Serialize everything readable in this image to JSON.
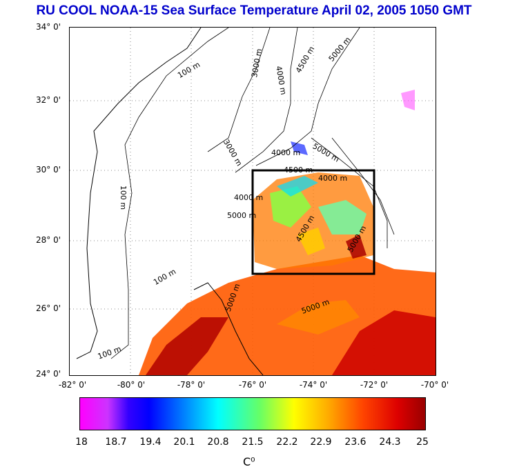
{
  "title": "RU COOL  NOAA-15 Sea Surface Temperature April 02, 2005 1050 GMT",
  "y_axis_labels": [
    "34° 0'",
    "32° 0'",
    "30° 0'",
    "28° 0'",
    "26° 0'",
    "24° 0'"
  ],
  "x_axis_labels": [
    "-82° 0'",
    "-80° 0'",
    "-78° 0'",
    "-76° 0'",
    "-74° 0'",
    "-72° 0'",
    "-70° 0'"
  ],
  "contour_labels": [
    "100 m",
    "100 m",
    "100 m",
    "100 m",
    "3000 m",
    "4000 m",
    "4500 m",
    "5000 m",
    "3000 m",
    "4000 m",
    "4500 m",
    "5000 m",
    "4000 m",
    "5000 m",
    "4000 m",
    "4500 m",
    "5000 m",
    "5000 m",
    "5000 m"
  ],
  "colorbar": {
    "tick_labels": [
      "18",
      "18.7",
      "19.4",
      "20.1",
      "20.8",
      "21.5",
      "22.2",
      "22.9",
      "23.6",
      "24.3",
      "25"
    ],
    "unit": "C⁰"
  }
}
